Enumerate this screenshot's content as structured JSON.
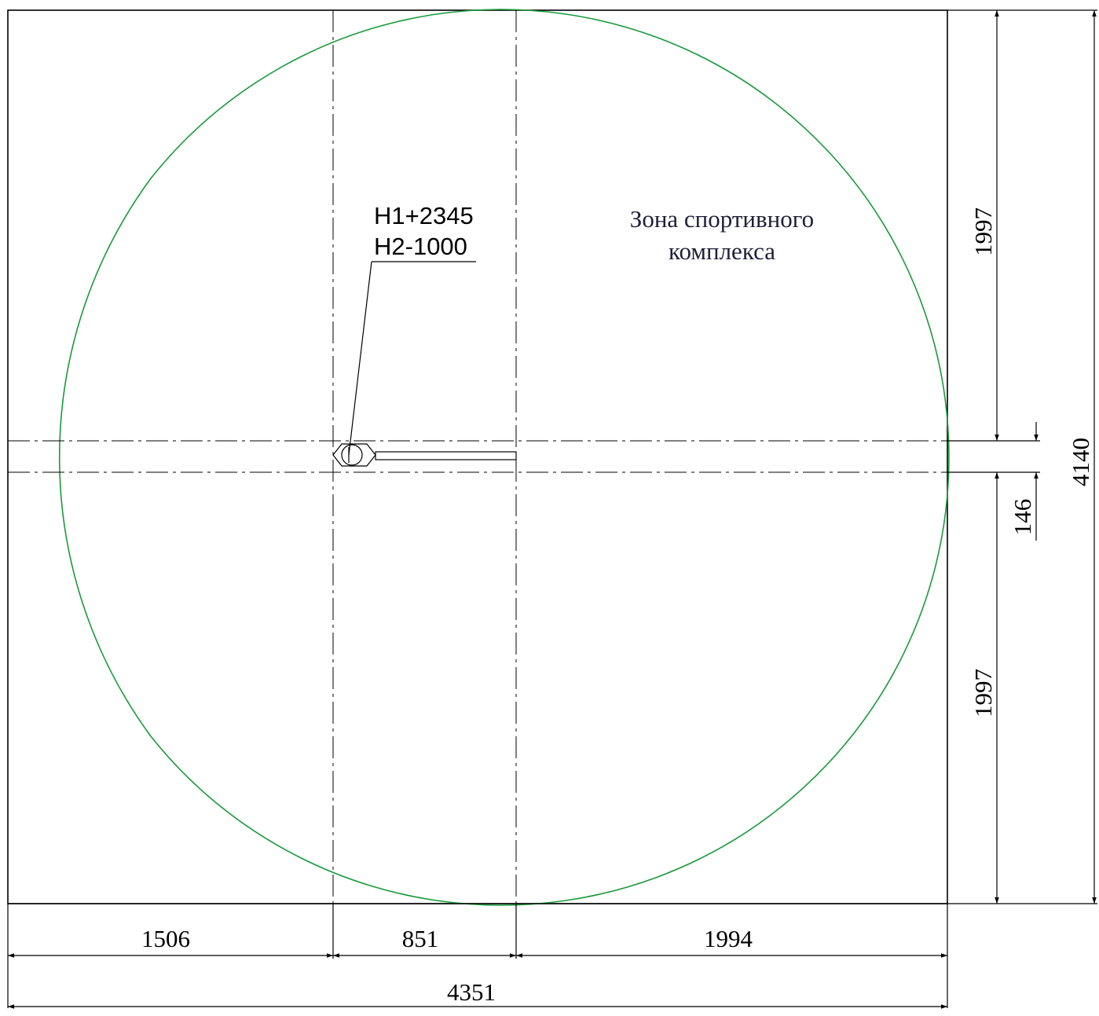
{
  "zone": {
    "line1": "Зона спортивного",
    "line2": "комплекса",
    "color": "#1a9a3c"
  },
  "marker": {
    "h1": "H1+2345",
    "h2": "H2-1000"
  },
  "dimensions": {
    "bottom_segment_1": "1506",
    "bottom_segment_2": "851",
    "bottom_segment_3": "1994",
    "bottom_total": "4351",
    "right_upper": "1997",
    "right_lower": "1997",
    "right_gap": "146",
    "right_total": "4140"
  }
}
